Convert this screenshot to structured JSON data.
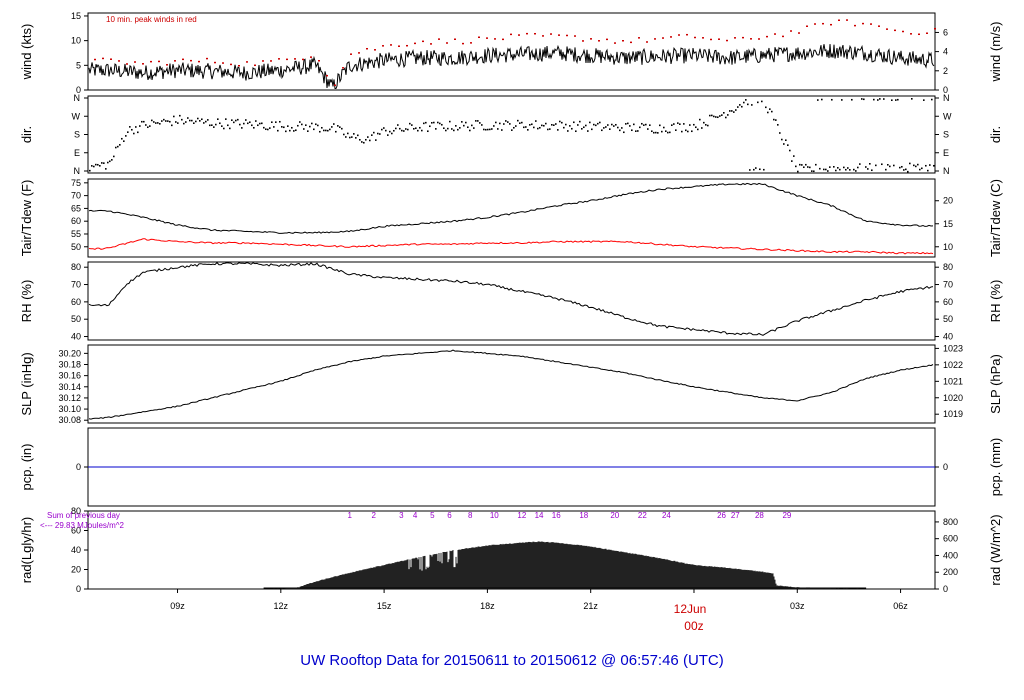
{
  "title": "UW Rooftop Data for 20150611  to  20150612 @ 06:57:46  (UTC)",
  "colors": {
    "frame": "#000000",
    "series": "#000000",
    "peak": "#cc0000",
    "tdew": "#ff0000",
    "pcp": "#0000cc",
    "rad_sum": "#9900cc",
    "title": "#0000cc",
    "date_label": "#cc0000"
  },
  "x_axis": {
    "range_hours": [
      6.4,
      31.0
    ],
    "ticks": [
      {
        "hour": 9,
        "label": "09z"
      },
      {
        "hour": 12,
        "label": "12z"
      },
      {
        "hour": 15,
        "label": "15z"
      },
      {
        "hour": 18,
        "label": "18z"
      },
      {
        "hour": 21,
        "label": "21z"
      },
      {
        "hour": 24,
        "label": "00z"
      },
      {
        "hour": 27,
        "label": "03z"
      },
      {
        "hour": 30,
        "label": "06z"
      }
    ],
    "date_label": "12Jun"
  },
  "chart_data": [
    {
      "type": "line",
      "name": "wind",
      "ylabel_left": "wind (kts)",
      "ylabel_right": "wind (m/s)",
      "ylim": [
        0,
        15.6
      ],
      "yticks_left": [
        0,
        5,
        10,
        15
      ],
      "yticks_right": [
        {
          "label": "0",
          "at": 0
        },
        {
          "label": "2",
          "at": 3.89
        },
        {
          "label": "4",
          "at": 7.78
        },
        {
          "label": "6",
          "at": 11.66
        }
      ],
      "annotation": "10 min. peak winds in red",
      "x": [
        6.4,
        7,
        8,
        9,
        10,
        11,
        12,
        13,
        13.5,
        14,
        15,
        16,
        17,
        18,
        19,
        20,
        21,
        22,
        23,
        24,
        25,
        26,
        27,
        28,
        29,
        30,
        31
      ],
      "y": [
        4,
        4,
        3.5,
        4,
        3.8,
        3.5,
        4,
        5,
        0.5,
        5,
        6,
        6.5,
        6.5,
        7,
        7.2,
        7.5,
        7,
        6.5,
        6.8,
        7,
        6.5,
        7,
        7.5,
        8,
        7.5,
        6.5,
        6
      ],
      "peak": [
        6,
        6,
        5.5,
        6,
        6,
        5.5,
        6,
        7.5,
        1,
        7.5,
        9,
        10,
        10,
        10.5,
        11,
        11,
        10.5,
        10,
        10.5,
        11,
        10,
        11,
        12,
        14,
        13.5,
        12,
        12
      ]
    },
    {
      "type": "scatter",
      "name": "dir",
      "ylabel_left": "dir.",
      "ylabel_right": "dir.",
      "yticks": [
        "N",
        "E",
        "S",
        "W",
        "N"
      ],
      "ylim": [
        0,
        360
      ],
      "x": [
        6.4,
        7,
        7.5,
        8,
        9,
        10,
        11,
        12,
        13,
        13.5,
        14,
        14.5,
        15,
        16,
        17,
        18,
        19,
        20,
        21,
        22,
        23,
        24,
        24.5,
        25,
        25.5,
        26,
        27,
        28,
        29,
        30,
        31
      ],
      "y": [
        20,
        40,
        200,
        230,
        255,
        240,
        235,
        225,
        220,
        215,
        170,
        160,
        200,
        220,
        225,
        230,
        230,
        228,
        222,
        218,
        215,
        225,
        260,
        300,
        350,
        358,
        10,
        15,
        15,
        15,
        20
      ]
    },
    {
      "type": "line",
      "name": "temp",
      "ylabel_left": "Tair/Tdew (F)",
      "ylabel_right": "Tair/Tdew (C)",
      "ylim": [
        46,
        76.5
      ],
      "yticks_left": [
        50,
        55,
        60,
        65,
        70,
        75
      ],
      "yticks_right": [
        {
          "label": "10",
          "at": 50
        },
        {
          "label": "15",
          "at": 59
        },
        {
          "label": "20",
          "at": 68
        }
      ],
      "series": [
        {
          "name": "Tair",
          "x": [
            6.4,
            7,
            8,
            9,
            10,
            11,
            12,
            13,
            14,
            15,
            16,
            17,
            18,
            19,
            20,
            21,
            22,
            23,
            24,
            25,
            26,
            27,
            28,
            29,
            30,
            31
          ],
          "y": [
            64,
            64,
            61.5,
            58.5,
            56.5,
            56,
            55.5,
            55.5,
            56,
            58,
            59,
            60,
            61.5,
            63.5,
            66,
            68,
            70.5,
            72.5,
            73.5,
            74.5,
            74.5,
            70,
            66,
            60,
            58.5,
            58
          ]
        },
        {
          "name": "Tdew",
          "x": [
            6.4,
            7,
            8,
            9,
            10,
            11,
            12,
            13,
            14,
            15,
            16,
            17,
            18,
            19,
            20,
            21,
            22,
            23,
            24,
            25,
            26,
            27,
            28,
            29,
            30,
            31
          ],
          "y": [
            49,
            49.5,
            53,
            52,
            51.5,
            51.5,
            51,
            50.5,
            50,
            50.5,
            51,
            51,
            51.5,
            51.5,
            52,
            52,
            52,
            51,
            50,
            49.5,
            49,
            48.5,
            48,
            48,
            47.5,
            47.5
          ]
        }
      ]
    },
    {
      "type": "line",
      "name": "rh",
      "ylabel_left": "RH (%)",
      "ylabel_right": "RH (%)",
      "ylim": [
        38,
        83
      ],
      "yticks_left": [
        40,
        50,
        60,
        70,
        80
      ],
      "yticks_right": [
        {
          "label": "40",
          "at": 40
        },
        {
          "label": "50",
          "at": 50
        },
        {
          "label": "60",
          "at": 60
        },
        {
          "label": "70",
          "at": 70
        },
        {
          "label": "80",
          "at": 80
        }
      ],
      "x": [
        6.4,
        7,
        7.5,
        8,
        9,
        10,
        11,
        12,
        13,
        14,
        15,
        16,
        17,
        18,
        19,
        20,
        21,
        22,
        23,
        24,
        25,
        26,
        27,
        28,
        29,
        30,
        31
      ],
      "y": [
        58,
        58,
        70,
        77,
        80,
        82,
        82,
        81,
        82,
        76,
        74,
        73,
        72,
        70,
        66,
        62,
        57,
        51,
        46,
        44,
        42,
        41,
        49,
        55,
        61,
        66,
        69
      ]
    },
    {
      "type": "line",
      "name": "slp",
      "ylabel_left": "SLP (inHg)",
      "ylabel_right": "SLP (hPa)",
      "ylim": [
        30.075,
        30.215
      ],
      "yticks_left": [
        30.08,
        30.1,
        30.12,
        30.14,
        30.16,
        30.18,
        30.2
      ],
      "yticks_right": [
        {
          "label": "1019",
          "at": 30.0908
        },
        {
          "label": "1020",
          "at": 30.1203
        },
        {
          "label": "1021",
          "at": 30.1498
        },
        {
          "label": "1022",
          "at": 30.1794
        },
        {
          "label": "1023",
          "at": 30.2089
        }
      ],
      "x": [
        6.4,
        7,
        8,
        9,
        10,
        11,
        12,
        13,
        14,
        15,
        16,
        17,
        18,
        19,
        20,
        21,
        22,
        23,
        24,
        25,
        26,
        27,
        28,
        29,
        30,
        31
      ],
      "y": [
        30.082,
        30.085,
        30.095,
        30.105,
        30.12,
        30.135,
        30.15,
        30.17,
        30.185,
        30.195,
        30.2,
        30.205,
        30.2,
        30.195,
        30.185,
        30.175,
        30.165,
        30.152,
        30.14,
        30.13,
        30.12,
        30.115,
        30.13,
        30.155,
        30.17,
        30.18
      ]
    },
    {
      "type": "line",
      "name": "pcp",
      "ylabel_left": "pcp. (in)",
      "ylabel_right": "pcp. (mm)",
      "ylim": [
        -1,
        1
      ],
      "yticks_left": [
        0
      ],
      "yticks_right": [
        {
          "label": "0",
          "at": 0
        }
      ],
      "x": [
        6.4,
        31
      ],
      "y": [
        0,
        0
      ]
    },
    {
      "type": "area",
      "name": "rad",
      "ylabel_left": "rad(Lgly/hr)",
      "ylabel_right": "rad (W/m^2)",
      "ylim": [
        0,
        80
      ],
      "yticks_left": [
        0,
        20,
        40,
        60,
        80
      ],
      "yticks_right": [
        {
          "label": "0",
          "at": 0
        },
        {
          "label": "200",
          "at": 17.2
        },
        {
          "label": "400",
          "at": 34.4
        },
        {
          "label": "600",
          "at": 51.6
        },
        {
          "label": "800",
          "at": 68.8
        }
      ],
      "sum_label_1": "Sum of previous day",
      "sum_label_2": "<--- 29.83 MJoules/m^2",
      "hour_labels": [
        "1",
        "2",
        "3",
        "4",
        "5",
        "6",
        "8",
        "10",
        "12",
        "14",
        "16",
        "18",
        "20",
        "22",
        "24",
        "26",
        "27",
        "28",
        "29"
      ],
      "hour_labels_x": [
        14,
        14.7,
        15.5,
        15.9,
        16.4,
        16.9,
        17.5,
        18.2,
        19,
        19.5,
        20,
        20.8,
        21.7,
        22.5,
        23.2,
        24.8,
        25.2,
        25.9,
        26.7
      ],
      "x": [
        6.4,
        11.5,
        12.0,
        12.5,
        13,
        14,
        15,
        16,
        17,
        18,
        19,
        19.5,
        20,
        21,
        22,
        23,
        24,
        25,
        26,
        26.3,
        26.4,
        27,
        28,
        29,
        31
      ],
      "y": [
        0,
        0,
        0.5,
        2,
        8,
        17,
        25,
        33,
        40,
        45,
        48,
        49,
        48,
        44,
        38,
        32,
        25,
        22,
        18,
        16,
        4,
        2,
        1,
        0,
        0
      ]
    }
  ]
}
